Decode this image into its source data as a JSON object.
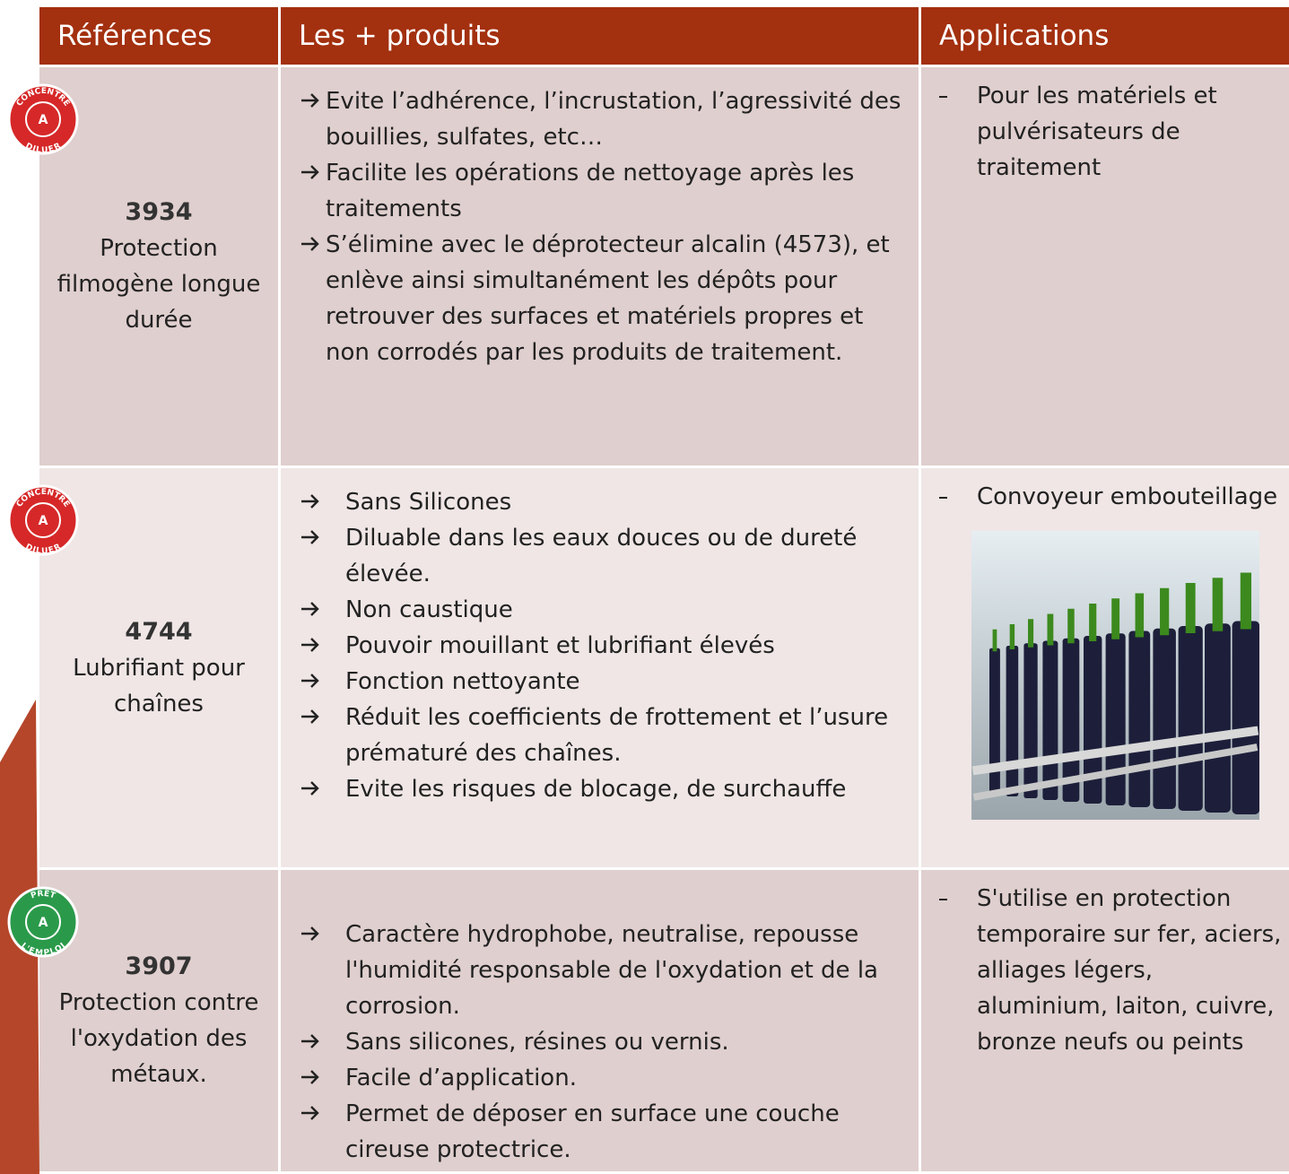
{
  "table": {
    "header": [
      "Références",
      "Les + produits",
      "Applications"
    ],
    "rows": [
      {
        "badge": {
          "top": "CONCENTRÉ",
          "center": "A",
          "bottom": "DILUER"
        },
        "ref": "3934",
        "name": "Protection filmogène longue durée",
        "features": [
          "Evite l’adhérence, l’incrustation, l’agressivité des bouillies, sulfates, etc…",
          "Facilite les opérations de nettoyage après les traitements",
          "S’élimine avec le déprotecteur alcalin (4573), et enlève ainsi simultanément les dépôts pour retrouver des surfaces et matériels propres et non corrodés par les produits de traitement."
        ],
        "applications": [
          "Pour les matériels et pulvérisateurs de traitement"
        ]
      },
      {
        "badge": {
          "top": "CONCENTRÉ",
          "center": "A",
          "bottom": "DILUER"
        },
        "ref": "4744",
        "name": "Lubrifiant pour chaînes",
        "features": [
          "Sans Silicones",
          "Diluable dans les eaux douces ou de dureté élevée.",
          "Non caustique",
          "Pouvoir mouillant et lubrifiant élevés",
          "Fonction nettoyante",
          "Réduit les coefficients de frottement et l’usure prématuré des chaînes.",
          "Evite les risques de blocage, de surchauffe"
        ],
        "applications": [
          "Convoyeur embouteillage"
        ]
      },
      {
        "badge": {
          "top": "PRÊT",
          "center": "A",
          "bottom": "L'EMPLOI"
        },
        "ref": "3907",
        "name": "Protection contre l'oxydation des métaux.",
        "features": [
          "Caractère hydrophobe, neutralise, repousse l'humidité responsable de l'oxydation et de la corrosion.",
          "Sans silicones, résines ou vernis.",
          "Facile d’application.",
          "Permet de déposer en surface une couche cireuse protectrice."
        ],
        "applications": [
          "S'utilise en protection temporaire sur fer, aciers, alliages légers, aluminium, laiton, cuivre, bronze neufs ou peints"
        ]
      }
    ]
  }
}
